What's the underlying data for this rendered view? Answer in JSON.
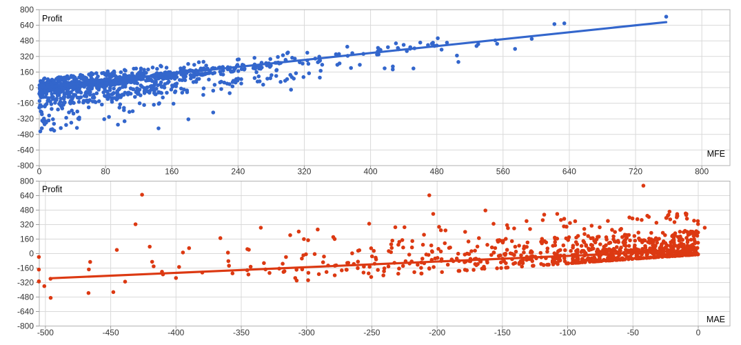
{
  "style": {
    "background": "#ffffff",
    "grid_color": "#d9d9d9",
    "frame_color": "#b2b2b2",
    "tick_color": "#9b9b9b",
    "tick_label_color": "#333333",
    "label_color": "#000000",
    "point_radius": 2.8,
    "trend_width": 3.2
  },
  "chart_data": [
    {
      "type": "scatter",
      "name": "mfe-profit",
      "series_label": "Profit",
      "x_axis_label": "MFE",
      "point_color": "#3366cc",
      "x_range": [
        0,
        834
      ],
      "y_range": [
        -800,
        800
      ],
      "x_ticks": [
        0,
        80,
        160,
        240,
        320,
        400,
        480,
        560,
        640,
        720,
        800
      ],
      "y_ticks": [
        800,
        640,
        480,
        320,
        160,
        0,
        -160,
        -320,
        -480,
        -640,
        -800
      ],
      "grid": true,
      "trendline": {
        "x1": 0,
        "y1": 0,
        "x2": 757,
        "y2": 672
      },
      "point_cloud_model": {
        "seed": 7,
        "n": 1150,
        "x_mean": 110,
        "x_max": 830,
        "x_dir": 1,
        "slope": 0.888,
        "intercept": 0,
        "cap": 770,
        "floor": {
          "s": 0,
          "b": -485
        },
        "tiers": [
          [
            0.54,
            -45,
            25,
            0
          ],
          [
            0.12,
            25,
            95,
            0
          ],
          [
            0.28,
            -205,
            -45,
            0
          ],
          [
            0.06,
            -500,
            -205,
            500
          ]
        ]
      },
      "outlier_points": [
        [
          757,
          728
        ],
        [
          622,
          652
        ],
        [
          634,
          660
        ],
        [
          530,
          446
        ],
        [
          460,
          462
        ],
        [
          474,
          451
        ],
        [
          480,
          432
        ],
        [
          440,
          439
        ],
        [
          448,
          415
        ],
        [
          421,
          415
        ],
        [
          409,
          408
        ],
        [
          417,
          198
        ],
        [
          305,
          108
        ],
        [
          319,
          108
        ],
        [
          304,
          -21
        ],
        [
          18,
          -441
        ],
        [
          26,
          -415
        ],
        [
          5,
          -352
        ],
        [
          95,
          -380
        ],
        [
          103,
          -345
        ],
        [
          144,
          -418
        ],
        [
          47,
          -318
        ],
        [
          180,
          -325
        ],
        [
          210,
          -255
        ]
      ]
    },
    {
      "type": "scatter",
      "name": "mae-profit",
      "series_label": "Profit",
      "x_axis_label": "MAE",
      "point_color": "#dc3912",
      "x_range": [
        -504.7,
        24.3
      ],
      "y_range": [
        -800,
        800
      ],
      "x_ticks": [
        -500,
        -450,
        -400,
        -350,
        -300,
        -250,
        -200,
        -150,
        -100,
        -50,
        0
      ],
      "y_ticks": [
        800,
        640,
        480,
        320,
        160,
        0,
        -160,
        -320,
        -480,
        -640,
        -800
      ],
      "grid": true,
      "trendline": {
        "x1": -495,
        "y1": -272,
        "x2": -3,
        "y2": 35
      },
      "point_cloud_model": {
        "seed": 13,
        "n": 850,
        "x_mean": 100,
        "x_max": 505,
        "x_dir": -1,
        "slope": 0.62,
        "intercept": 20,
        "cap": 755,
        "floor": {
          "s": 1,
          "b": -8
        },
        "tiers": [
          [
            0.52,
            -50,
            90,
            0
          ],
          [
            0.24,
            90,
            230,
            0
          ],
          [
            0.09,
            230,
            430,
            0
          ],
          [
            0.15,
            -160,
            -50,
            0
          ]
        ]
      },
      "outlier_points": [
        [
          -496,
          -489
        ],
        [
          -467,
          -436
        ],
        [
          -448,
          -425
        ],
        [
          -426,
          650
        ],
        [
          -431,
          324
        ],
        [
          -206,
          644
        ],
        [
          -42,
          750
        ],
        [
          -203,
          438
        ],
        [
          -163,
          476
        ],
        [
          -118,
          430
        ],
        [
          -108,
          438
        ],
        [
          -22,
          463
        ],
        [
          -16,
          415
        ],
        [
          -9,
          438
        ],
        [
          5,
          286
        ],
        [
          -335,
          286
        ],
        [
          -366,
          171
        ],
        [
          -302,
          160
        ],
        [
          -252,
          330
        ],
        [
          -232,
          291
        ],
        [
          -225,
          291
        ],
        [
          -219,
          139
        ],
        [
          -226,
          67
        ],
        [
          -190,
          67
        ],
        [
          -168,
          171
        ],
        [
          -141,
          278
        ],
        [
          -390,
          60
        ],
        [
          -410,
          -230
        ],
        [
          -400,
          -270
        ]
      ]
    }
  ]
}
